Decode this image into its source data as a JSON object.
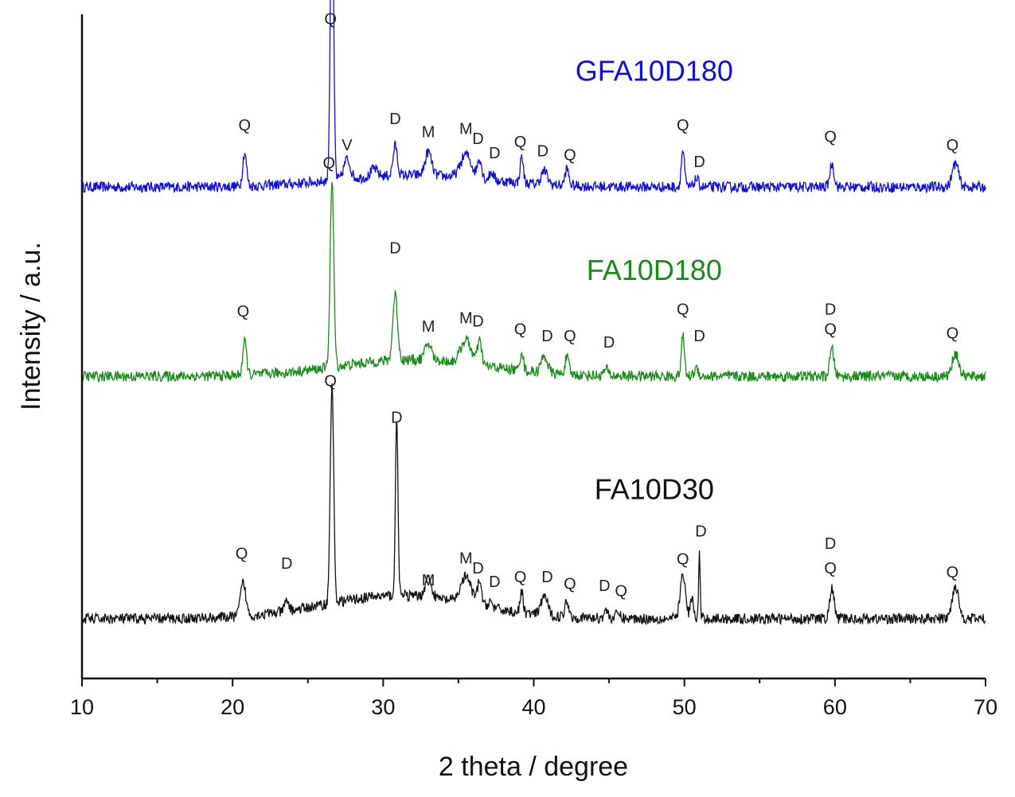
{
  "chart_data": {
    "type": "line",
    "title": "",
    "xlabel": "2 theta / degree",
    "ylabel": "Intensity / a.u.",
    "xlim": [
      10,
      70
    ],
    "x_ticks": [
      10,
      20,
      30,
      40,
      50,
      60,
      70
    ],
    "y_ticks_shown": false,
    "grid": false,
    "legend": "none (series names printed beside each trace)",
    "series": [
      {
        "name": "GFA10D180",
        "color": "#1010d0",
        "baseline": 0.74,
        "noise": 0.008,
        "peaks": [
          {
            "x": 20.8,
            "h": 0.05,
            "w": 0.18
          },
          {
            "x": 26.6,
            "h": 0.46,
            "w": 0.15
          },
          {
            "x": 27.6,
            "h": 0.03,
            "w": 0.3
          },
          {
            "x": 29.4,
            "h": 0.012,
            "w": 0.3
          },
          {
            "x": 30.8,
            "h": 0.045,
            "w": 0.2
          },
          {
            "x": 33.0,
            "h": 0.035,
            "w": 0.3
          },
          {
            "x": 35.5,
            "h": 0.035,
            "w": 0.5
          },
          {
            "x": 36.4,
            "h": 0.03,
            "w": 0.2
          },
          {
            "x": 37.2,
            "h": 0.012,
            "w": 0.2
          },
          {
            "x": 39.2,
            "h": 0.04,
            "w": 0.15
          },
          {
            "x": 40.7,
            "h": 0.02,
            "w": 0.3
          },
          {
            "x": 42.2,
            "h": 0.025,
            "w": 0.18
          },
          {
            "x": 49.9,
            "h": 0.055,
            "w": 0.15
          },
          {
            "x": 50.8,
            "h": 0.012,
            "w": 0.2
          },
          {
            "x": 59.8,
            "h": 0.035,
            "w": 0.2
          },
          {
            "x": 68.0,
            "h": 0.035,
            "w": 0.3
          }
        ],
        "hump": {
          "center": 32.0,
          "h": 0.018,
          "w": 7.0
        },
        "annotations": [
          {
            "text": "Q",
            "x": 26.5,
            "y": 0.985
          },
          {
            "text": "Q",
            "x": 20.8,
            "y": 0.825
          },
          {
            "text": "V",
            "x": 27.6,
            "y": 0.795
          },
          {
            "text": "D",
            "x": 30.8,
            "y": 0.835
          },
          {
            "text": "M",
            "x": 33.0,
            "y": 0.815
          },
          {
            "text": "M",
            "x": 35.5,
            "y": 0.82
          },
          {
            "text": "D",
            "x": 36.3,
            "y": 0.805
          },
          {
            "text": "D",
            "x": 37.4,
            "y": 0.783
          },
          {
            "text": "Q",
            "x": 39.1,
            "y": 0.8
          },
          {
            "text": "D",
            "x": 40.6,
            "y": 0.786
          },
          {
            "text": "Q",
            "x": 42.4,
            "y": 0.78
          },
          {
            "text": "Q",
            "x": 49.9,
            "y": 0.825
          },
          {
            "text": "D",
            "x": 51.0,
            "y": 0.77
          },
          {
            "text": "Q",
            "x": 59.7,
            "y": 0.808
          },
          {
            "text": "Q",
            "x": 67.8,
            "y": 0.795
          }
        ]
      },
      {
        "name": "FA10D180",
        "color": "#1a8a1a",
        "baseline": 0.455,
        "noise": 0.008,
        "peaks": [
          {
            "x": 20.8,
            "h": 0.05,
            "w": 0.18
          },
          {
            "x": 26.6,
            "h": 0.28,
            "w": 0.17
          },
          {
            "x": 30.8,
            "h": 0.1,
            "w": 0.22
          },
          {
            "x": 33.0,
            "h": 0.025,
            "w": 0.3
          },
          {
            "x": 35.5,
            "h": 0.035,
            "w": 0.5
          },
          {
            "x": 36.4,
            "h": 0.035,
            "w": 0.2
          },
          {
            "x": 39.2,
            "h": 0.03,
            "w": 0.15
          },
          {
            "x": 40.7,
            "h": 0.025,
            "w": 0.3
          },
          {
            "x": 42.2,
            "h": 0.025,
            "w": 0.18
          },
          {
            "x": 44.8,
            "h": 0.01,
            "w": 0.2
          },
          {
            "x": 49.9,
            "h": 0.06,
            "w": 0.15
          },
          {
            "x": 50.8,
            "h": 0.012,
            "w": 0.2
          },
          {
            "x": 59.8,
            "h": 0.04,
            "w": 0.2
          },
          {
            "x": 68.0,
            "h": 0.035,
            "w": 0.3
          }
        ],
        "hump": {
          "center": 32.0,
          "h": 0.025,
          "w": 7.0
        },
        "annotations": [
          {
            "text": "Q",
            "x": 26.4,
            "y": 0.768
          },
          {
            "text": "Q",
            "x": 20.7,
            "y": 0.545
          },
          {
            "text": "D",
            "x": 30.8,
            "y": 0.64
          },
          {
            "text": "M",
            "x": 33.0,
            "y": 0.522
          },
          {
            "text": "M",
            "x": 35.5,
            "y": 0.535
          },
          {
            "text": "D",
            "x": 36.3,
            "y": 0.53
          },
          {
            "text": "Q",
            "x": 39.1,
            "y": 0.518
          },
          {
            "text": "D",
            "x": 40.9,
            "y": 0.508
          },
          {
            "text": "Q",
            "x": 42.4,
            "y": 0.508
          },
          {
            "text": "D",
            "x": 45.0,
            "y": 0.498
          },
          {
            "text": "Q",
            "x": 49.9,
            "y": 0.548
          },
          {
            "text": "D",
            "x": 51.0,
            "y": 0.508
          },
          {
            "text": "D",
            "x": 59.7,
            "y": 0.548
          },
          {
            "text": "Q",
            "x": 59.7,
            "y": 0.518
          },
          {
            "text": "Q",
            "x": 67.8,
            "y": 0.512
          }
        ]
      },
      {
        "name": "FA10D30",
        "color": "#111111",
        "baseline": 0.09,
        "noise": 0.008,
        "peaks": [
          {
            "x": 20.7,
            "h": 0.05,
            "w": 0.25
          },
          {
            "x": 23.6,
            "h": 0.015,
            "w": 0.2
          },
          {
            "x": 26.6,
            "h": 0.33,
            "w": 0.16
          },
          {
            "x": 30.9,
            "h": 0.27,
            "w": 0.12
          },
          {
            "x": 33.0,
            "h": 0.03,
            "w": 0.3
          },
          {
            "x": 35.5,
            "h": 0.04,
            "w": 0.5
          },
          {
            "x": 36.4,
            "h": 0.035,
            "w": 0.2
          },
          {
            "x": 37.1,
            "h": 0.01,
            "w": 0.2
          },
          {
            "x": 39.2,
            "h": 0.03,
            "w": 0.15
          },
          {
            "x": 40.7,
            "h": 0.03,
            "w": 0.3
          },
          {
            "x": 42.2,
            "h": 0.025,
            "w": 0.18
          },
          {
            "x": 44.8,
            "h": 0.012,
            "w": 0.2
          },
          {
            "x": 45.6,
            "h": 0.008,
            "w": 0.2
          },
          {
            "x": 49.9,
            "h": 0.065,
            "w": 0.25
          },
          {
            "x": 50.5,
            "h": 0.03,
            "w": 0.15
          },
          {
            "x": 51.0,
            "h": 0.1,
            "w": 0.07
          },
          {
            "x": 59.8,
            "h": 0.045,
            "w": 0.2
          },
          {
            "x": 68.0,
            "h": 0.05,
            "w": 0.3
          }
        ],
        "hump": {
          "center": 31.0,
          "h": 0.035,
          "w": 7.0
        },
        "annotations": [
          {
            "text": "Q",
            "x": 26.5,
            "y": 0.44
          },
          {
            "text": "Q",
            "x": 20.6,
            "y": 0.18
          },
          {
            "text": "D",
            "x": 23.6,
            "y": 0.165
          },
          {
            "text": "D",
            "x": 30.9,
            "y": 0.385
          },
          {
            "text": "M",
            "x": 33.0,
            "y": 0.14
          },
          {
            "text": "M",
            "x": 35.5,
            "y": 0.173
          },
          {
            "text": "D",
            "x": 36.3,
            "y": 0.158
          },
          {
            "text": "D",
            "x": 37.4,
            "y": 0.138
          },
          {
            "text": "Q",
            "x": 39.1,
            "y": 0.145
          },
          {
            "text": "D",
            "x": 40.9,
            "y": 0.145
          },
          {
            "text": "Q",
            "x": 42.4,
            "y": 0.135
          },
          {
            "text": "D",
            "x": 44.7,
            "y": 0.132
          },
          {
            "text": "Q",
            "x": 45.8,
            "y": 0.124
          },
          {
            "text": "Q",
            "x": 49.9,
            "y": 0.172
          },
          {
            "text": "D",
            "x": 51.1,
            "y": 0.214
          },
          {
            "text": "D",
            "x": 59.7,
            "y": 0.195
          },
          {
            "text": "Q",
            "x": 59.7,
            "y": 0.158
          },
          {
            "text": "Q",
            "x": 67.8,
            "y": 0.152
          }
        ]
      }
    ]
  }
}
